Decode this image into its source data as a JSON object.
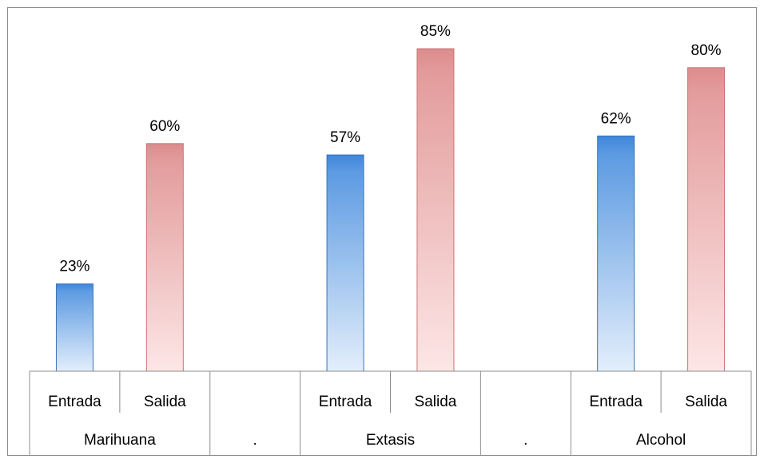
{
  "chart_data": {
    "type": "bar",
    "categories": [
      {
        "group": "Marihuana",
        "label": "Entrada",
        "value": 23,
        "data_label": "23%",
        "series": "Entrada"
      },
      {
        "group": "Marihuana",
        "label": "Salida",
        "value": 60,
        "data_label": "60%",
        "series": "Salida"
      },
      {
        "group": ".",
        "label": "",
        "value": null,
        "data_label": "",
        "series": ""
      },
      {
        "group": "Extasis",
        "label": "Entrada",
        "value": 57,
        "data_label": "57%",
        "series": "Entrada"
      },
      {
        "group": "Extasis",
        "label": "Salida",
        "value": 85,
        "data_label": "85%",
        "series": "Salida"
      },
      {
        "group": ".",
        "label": "",
        "value": null,
        "data_label": "",
        "series": ""
      },
      {
        "group": "Alcohol",
        "label": "Entrada",
        "value": 62,
        "data_label": "62%",
        "series": "Entrada"
      },
      {
        "group": "Alcohol",
        "label": "Salida",
        "value": 80,
        "data_label": "80%",
        "series": "Salida"
      }
    ],
    "groups": [
      "Marihuana",
      ".",
      "Extasis",
      ".",
      "Alcohol"
    ],
    "ylim": [
      0,
      90
    ],
    "grid": false,
    "legend": "none",
    "title": "",
    "xlabel": "",
    "ylabel": "",
    "colors": {
      "Entrada": "#4f8fd8",
      "Salida": "#e08a8a"
    }
  }
}
